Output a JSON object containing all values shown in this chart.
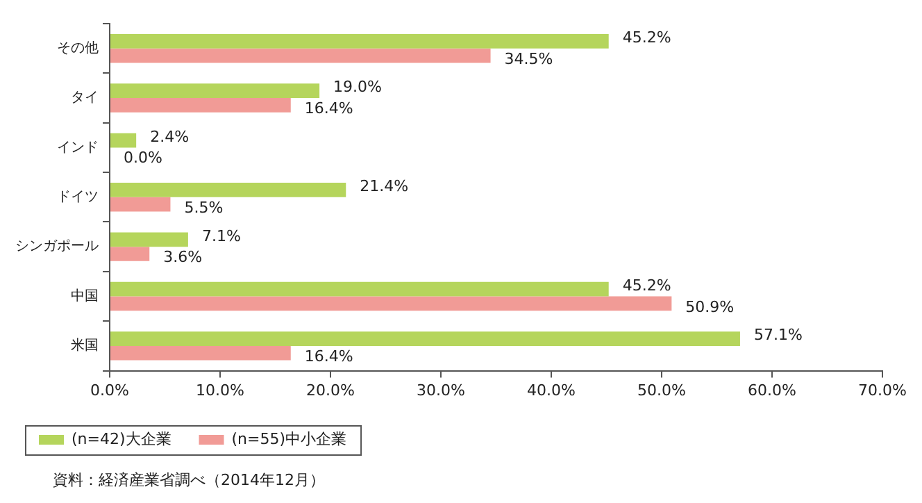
{
  "chart_data": {
    "type": "bar",
    "orientation": "horizontal",
    "categories": [
      "その他",
      "タイ",
      "インド",
      "ドイツ",
      "シンガポール",
      "中国",
      "米国"
    ],
    "series": [
      {
        "name": "(n=42)大企業",
        "color": "#b5d55c",
        "values": [
          45.2,
          19.0,
          2.4,
          21.4,
          7.1,
          45.2,
          57.1
        ],
        "value_labels": [
          "45.2%",
          "19.0%",
          "2.4%",
          "21.4%",
          "7.1%",
          "45.2%",
          "57.1%"
        ]
      },
      {
        "name": "(n=55)中小企業",
        "color": "#f19b96",
        "values": [
          34.5,
          16.4,
          0.0,
          5.5,
          3.6,
          50.9,
          16.4
        ],
        "value_labels": [
          "34.5%",
          "16.4%",
          "0.0%",
          "5.5%",
          "3.6%",
          "50.9%",
          "16.4%"
        ]
      }
    ],
    "xlim": [
      0,
      70
    ],
    "xticks": [
      {
        "value": 0,
        "label": "0.0%"
      },
      {
        "value": 10,
        "label": "10.0%"
      },
      {
        "value": 20,
        "label": "20.0%"
      },
      {
        "value": 30,
        "label": "30.0%"
      },
      {
        "value": 40,
        "label": "40.0%"
      },
      {
        "value": 50,
        "label": "50.0%"
      },
      {
        "value": 60,
        "label": "60.0%"
      },
      {
        "value": 70,
        "label": "70.0%"
      }
    ],
    "grid": false,
    "legend": "bottom left",
    "annotations": [
      "資料：経済産業省調べ（2014年12月）"
    ]
  }
}
